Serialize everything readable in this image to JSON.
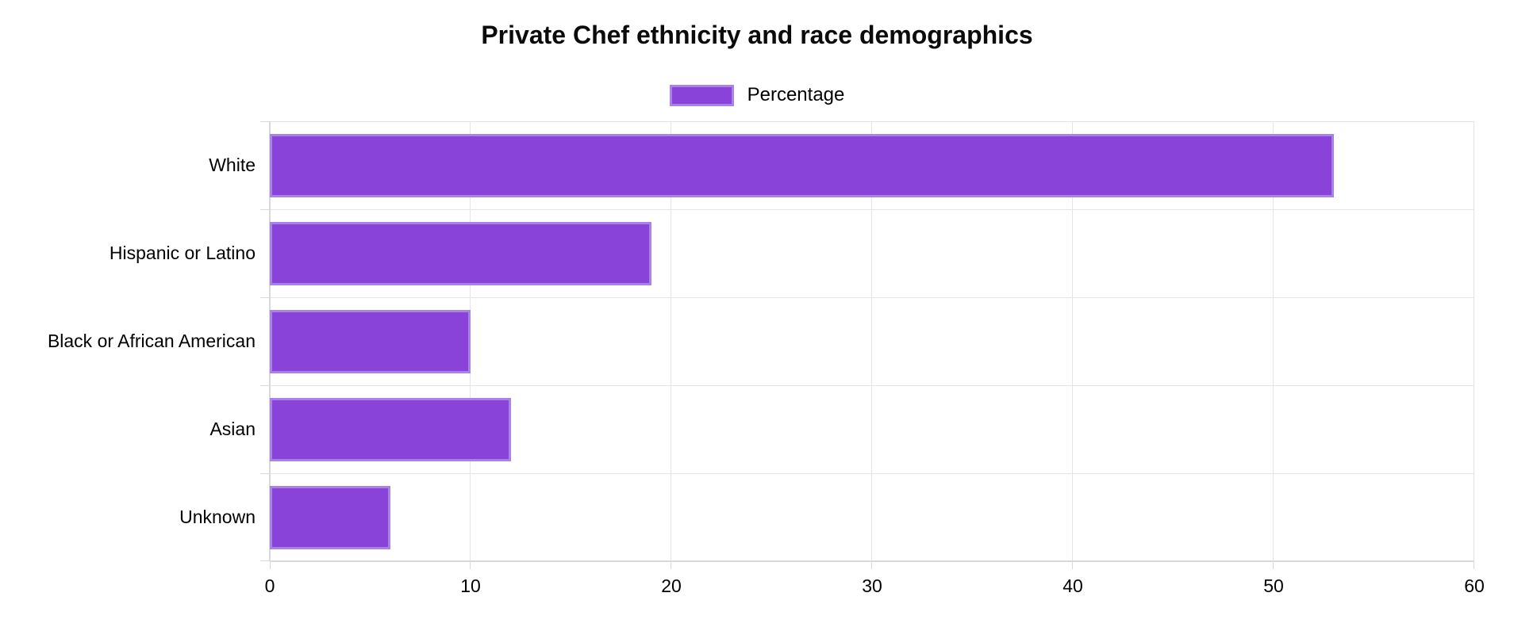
{
  "chart_data": {
    "type": "bar",
    "orientation": "horizontal",
    "title": "Private Chef ethnicity and race demographics",
    "categories": [
      "White",
      "Hispanic or Latino",
      "Black or African American",
      "Asian",
      "Unknown"
    ],
    "series": [
      {
        "name": "Percentage",
        "values": [
          53,
          19,
          10,
          12,
          6
        ]
      }
    ],
    "xlabel": "",
    "ylabel": "",
    "xlim": [
      0,
      60
    ],
    "x_ticks": [
      0,
      10,
      20,
      30,
      40,
      50,
      60
    ],
    "grid": true,
    "legend_position": "top",
    "colors": {
      "bar_fill": "#8A43D9",
      "bar_border": "#A982E8",
      "gridline": "#E5E5E5",
      "axis_line": "#D9D9D9",
      "text": "#000000",
      "background": "#FFFFFF"
    }
  }
}
